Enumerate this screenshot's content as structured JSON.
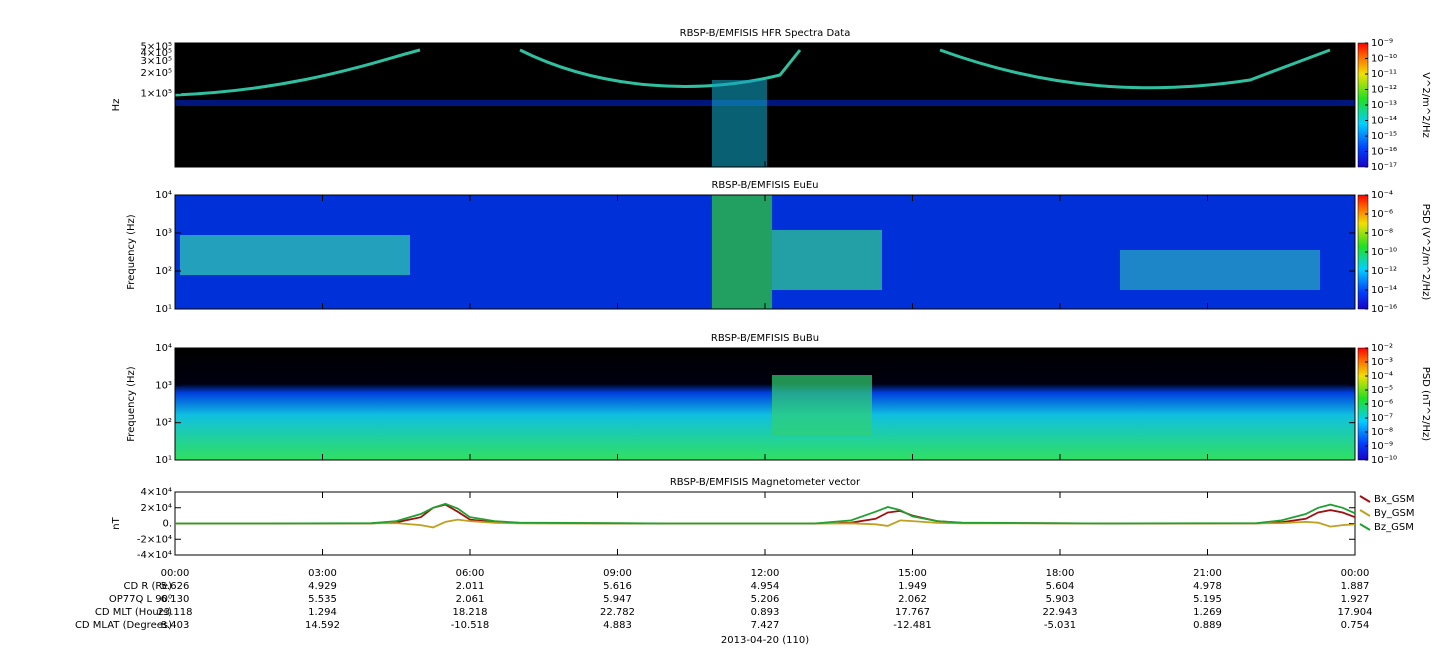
{
  "chart_data": [
    {
      "type": "spectrogram",
      "title": "RBSP-B/EMFISIS  HFR Spectra Data",
      "ylabel": "Hz",
      "ylog": true,
      "ylim": [
        8000,
        560000
      ],
      "yticks": [
        {
          "value": 100000,
          "label": "1×10⁵"
        },
        {
          "value": 200000,
          "label": "2×10⁵"
        },
        {
          "value": 300000,
          "label": "3×10⁵"
        },
        {
          "value": 400000,
          "label": "4×10⁵"
        },
        {
          "value": 500000,
          "label": "5×10⁵"
        }
      ],
      "zlabel": "V^2/m^2/Hz",
      "zlog": true,
      "zlim": [
        1e-17,
        1e-09
      ],
      "zticks": [
        {
          "value": 1e-17,
          "label": "10⁻¹⁷"
        },
        {
          "value": 1e-16,
          "label": "10⁻¹⁶"
        },
        {
          "value": 1e-15,
          "label": "10⁻¹⁵"
        },
        {
          "value": 1e-14,
          "label": "10⁻¹⁴"
        },
        {
          "value": 1e-13,
          "label": "10⁻¹³"
        },
        {
          "value": 1e-12,
          "label": "10⁻¹²"
        },
        {
          "value": 1e-11,
          "label": "10⁻¹¹"
        },
        {
          "value": 1e-10,
          "label": "10⁻¹⁰"
        },
        {
          "value": 1e-09,
          "label": "10⁻⁹"
        }
      ]
    },
    {
      "type": "spectrogram",
      "title": "RBSP-B/EMFISIS  EuEu",
      "ylabel": "Frequency (Hz)",
      "ylog": true,
      "ylim": [
        10,
        10000
      ],
      "yticks": [
        {
          "value": 10,
          "label": "10¹"
        },
        {
          "value": 100,
          "label": "10²"
        },
        {
          "value": 1000,
          "label": "10³"
        },
        {
          "value": 10000,
          "label": "10⁴"
        }
      ],
      "zlabel": "PSD (V^2/m^2/Hz)",
      "zlog": true,
      "zlim": [
        1e-16,
        0.0001
      ],
      "zticks": [
        {
          "value": 1e-16,
          "label": "10⁻¹⁶"
        },
        {
          "value": 1e-14,
          "label": "10⁻¹⁴"
        },
        {
          "value": 1e-12,
          "label": "10⁻¹²"
        },
        {
          "value": 1e-10,
          "label": "10⁻¹⁰"
        },
        {
          "value": 1e-08,
          "label": "10⁻⁸"
        },
        {
          "value": 1e-06,
          "label": "10⁻⁶"
        },
        {
          "value": 0.0001,
          "label": "10⁻⁴"
        }
      ]
    },
    {
      "type": "spectrogram",
      "title": "RBSP-B/EMFISIS  BuBu",
      "ylabel": "Frequency (Hz)",
      "ylog": true,
      "ylim": [
        10,
        10000
      ],
      "yticks": [
        {
          "value": 10,
          "label": "10¹"
        },
        {
          "value": 100,
          "label": "10²"
        },
        {
          "value": 1000,
          "label": "10³"
        },
        {
          "value": 10000,
          "label": "10⁴"
        }
      ],
      "zlabel": "PSD (nT^2/Hz)",
      "zlog": true,
      "zlim": [
        1e-10,
        0.01
      ],
      "zticks": [
        {
          "value": 1e-10,
          "label": "10⁻¹⁰"
        },
        {
          "value": 1e-09,
          "label": "10⁻⁹"
        },
        {
          "value": 1e-08,
          "label": "10⁻⁸"
        },
        {
          "value": 1e-07,
          "label": "10⁻⁷"
        },
        {
          "value": 1e-06,
          "label": "10⁻⁶"
        },
        {
          "value": 1e-05,
          "label": "10⁻⁵"
        },
        {
          "value": 0.0001,
          "label": "10⁻⁴"
        },
        {
          "value": 0.001,
          "label": "10⁻³"
        },
        {
          "value": 0.01,
          "label": "10⁻²"
        }
      ]
    },
    {
      "type": "line",
      "title": "RBSP-B/EMFISIS  Magnetometer vector",
      "ylabel": "nT",
      "legend": "right",
      "ylim": [
        -40000,
        40000
      ],
      "yticks": [
        {
          "value": -40000,
          "label": "-4×10⁴"
        },
        {
          "value": -20000,
          "label": "-2×10⁴"
        },
        {
          "value": 0,
          "label": "0."
        },
        {
          "value": 20000,
          "label": "2×10⁴"
        },
        {
          "value": 40000,
          "label": "4×10⁴"
        }
      ],
      "xlim": [
        0,
        24
      ],
      "xticks": [
        {
          "value": 0,
          "label": "00:00"
        },
        {
          "value": 3,
          "label": "03:00"
        },
        {
          "value": 6,
          "label": "06:00"
        },
        {
          "value": 9,
          "label": "09:00"
        },
        {
          "value": 12,
          "label": "12:00"
        },
        {
          "value": 15,
          "label": "15:00"
        },
        {
          "value": 18,
          "label": "18:00"
        },
        {
          "value": 21,
          "label": "21:00"
        },
        {
          "value": 24,
          "label": "00:00"
        }
      ],
      "xlabel": "2013-04-20 (110)",
      "x": [
        0,
        2,
        4,
        4.5,
        5,
        5.25,
        5.5,
        5.75,
        6,
        6.5,
        7,
        10,
        13,
        13.75,
        14.25,
        14.5,
        14.75,
        15,
        15.5,
        16,
        19,
        22,
        22.5,
        23,
        23.25,
        23.5,
        23.75,
        24
      ],
      "series": [
        {
          "name": "Bx_GSM",
          "color": "#a01010",
          "values": [
            0,
            0,
            200,
            1500,
            8000,
            20000,
            24000,
            15000,
            5000,
            1500,
            500,
            0,
            0,
            1000,
            6000,
            14000,
            16000,
            10000,
            3000,
            800,
            0,
            200,
            1500,
            6000,
            14000,
            17000,
            14000,
            8000
          ]
        },
        {
          "name": "By_GSM",
          "color": "#c0a020",
          "values": [
            0,
            0,
            100,
            500,
            -2000,
            -5000,
            2000,
            5000,
            3000,
            800,
            200,
            0,
            0,
            200,
            -1000,
            -3000,
            4000,
            3000,
            800,
            200,
            0,
            100,
            500,
            2000,
            1000,
            -4000,
            -2000,
            -1000
          ]
        },
        {
          "name": "Bz_GSM",
          "color": "#20a030",
          "values": [
            0,
            0,
            400,
            3000,
            12000,
            20000,
            25000,
            19000,
            8000,
            3000,
            1000,
            0,
            0,
            4000,
            15000,
            21000,
            17000,
            9000,
            3000,
            1000,
            0,
            500,
            4000,
            12000,
            20000,
            24000,
            20000,
            13000
          ]
        }
      ]
    }
  ],
  "ephemeris": {
    "rows": [
      {
        "label": "CD R (Re)",
        "values": [
          "5.626",
          "4.929",
          "2.011",
          "5.616",
          "4.954",
          "1.949",
          "5.604",
          "4.978",
          "1.887"
        ]
      },
      {
        "label": "OP77Q L 90⁰",
        "values": [
          "6.130",
          "5.535",
          "2.061",
          "5.947",
          "5.206",
          "2.062",
          "5.903",
          "5.195",
          "1.927"
        ]
      },
      {
        "label": "CD MLT (Hours)",
        "values": [
          "23.118",
          "1.294",
          "18.218",
          "22.782",
          "0.893",
          "17.767",
          "22.943",
          "1.269",
          "17.904"
        ]
      },
      {
        "label": "CD MLAT (Degrees)",
        "values": [
          "8.403",
          "14.592",
          "-10.518",
          "4.883",
          "7.427",
          "-12.481",
          "-5.031",
          "0.889",
          "0.754"
        ]
      }
    ]
  }
}
